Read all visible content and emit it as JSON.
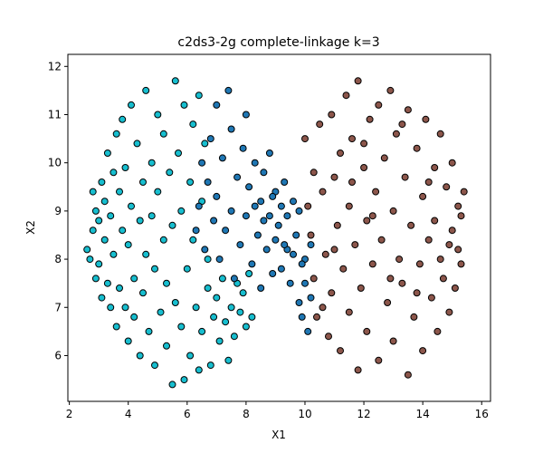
{
  "chart_data": {
    "type": "scatter",
    "title": "c2ds3-2g complete-linkage k=3",
    "xlabel": "X1",
    "ylabel": "X2",
    "xlim": [
      1.95,
      16.3
    ],
    "ylim": [
      5.05,
      12.25
    ],
    "xticks": [
      2,
      4,
      6,
      8,
      10,
      12,
      14,
      16
    ],
    "yticks": [
      6,
      7,
      8,
      9,
      10,
      11,
      12
    ],
    "grid": false,
    "legend": "none",
    "series": [
      {
        "color": "#17becf",
        "points": [
          [
            2.6,
            8.2
          ],
          [
            2.7,
            8.0
          ],
          [
            2.8,
            9.4
          ],
          [
            2.8,
            8.6
          ],
          [
            2.9,
            7.6
          ],
          [
            2.9,
            9.0
          ],
          [
            3.0,
            8.8
          ],
          [
            3.0,
            7.9
          ],
          [
            3.1,
            9.6
          ],
          [
            3.1,
            7.2
          ],
          [
            3.2,
            8.4
          ],
          [
            3.2,
            9.2
          ],
          [
            3.3,
            7.5
          ],
          [
            3.3,
            10.2
          ],
          [
            3.4,
            8.9
          ],
          [
            3.4,
            7.0
          ],
          [
            3.5,
            9.8
          ],
          [
            3.5,
            8.1
          ],
          [
            3.6,
            6.6
          ],
          [
            3.6,
            10.6
          ],
          [
            3.7,
            9.4
          ],
          [
            3.7,
            7.4
          ],
          [
            3.8,
            8.6
          ],
          [
            3.8,
            10.9
          ],
          [
            3.9,
            7.0
          ],
          [
            3.9,
            9.9
          ],
          [
            4.0,
            6.3
          ],
          [
            4.0,
            8.3
          ],
          [
            4.1,
            11.2
          ],
          [
            4.1,
            9.1
          ],
          [
            4.2,
            7.6
          ],
          [
            4.2,
            6.8
          ],
          [
            4.3,
            10.4
          ],
          [
            4.4,
            8.8
          ],
          [
            4.4,
            6.0
          ],
          [
            4.5,
            9.6
          ],
          [
            4.5,
            7.3
          ],
          [
            4.6,
            11.5
          ],
          [
            4.6,
            8.1
          ],
          [
            4.7,
            6.5
          ],
          [
            4.8,
            10.0
          ],
          [
            4.8,
            8.9
          ],
          [
            4.9,
            7.8
          ],
          [
            4.9,
            5.8
          ],
          [
            5.0,
            11.0
          ],
          [
            5.0,
            9.4
          ],
          [
            5.1,
            6.9
          ],
          [
            5.2,
            8.4
          ],
          [
            5.2,
            10.6
          ],
          [
            5.3,
            6.2
          ],
          [
            5.3,
            7.5
          ],
          [
            5.4,
            9.8
          ],
          [
            5.5,
            5.4
          ],
          [
            5.5,
            8.7
          ],
          [
            5.6,
            11.7
          ],
          [
            5.6,
            7.1
          ],
          [
            5.7,
            10.2
          ],
          [
            5.8,
            6.6
          ],
          [
            5.8,
            9.0
          ],
          [
            5.9,
            5.5
          ],
          [
            5.9,
            11.2
          ],
          [
            6.0,
            7.8
          ],
          [
            6.1,
            9.6
          ],
          [
            6.1,
            6.0
          ],
          [
            6.2,
            10.8
          ],
          [
            6.2,
            8.4
          ],
          [
            6.3,
            7.0
          ],
          [
            6.4,
            11.4
          ],
          [
            6.4,
            5.7
          ],
          [
            6.5,
            9.2
          ],
          [
            6.5,
            6.5
          ],
          [
            6.6,
            10.4
          ],
          [
            6.7,
            7.4
          ],
          [
            6.7,
            8.0
          ],
          [
            6.8,
            5.8
          ],
          [
            6.9,
            6.8
          ],
          [
            7.0,
            7.2
          ],
          [
            7.1,
            6.3
          ],
          [
            7.2,
            7.6
          ],
          [
            7.3,
            6.7
          ],
          [
            7.4,
            5.9
          ],
          [
            7.5,
            7.0
          ],
          [
            7.6,
            6.4
          ],
          [
            7.7,
            7.5
          ],
          [
            7.8,
            6.9
          ],
          [
            7.9,
            7.3
          ],
          [
            8.0,
            6.6
          ],
          [
            8.1,
            7.7
          ],
          [
            8.2,
            6.8
          ]
        ]
      },
      {
        "color": "#1f77b4",
        "points": [
          [
            6.3,
            8.6
          ],
          [
            6.4,
            9.1
          ],
          [
            6.5,
            10.0
          ],
          [
            6.6,
            8.2
          ],
          [
            6.7,
            9.6
          ],
          [
            6.8,
            10.5
          ],
          [
            6.9,
            8.8
          ],
          [
            7.0,
            11.2
          ],
          [
            7.0,
            9.3
          ],
          [
            7.1,
            8.0
          ],
          [
            7.2,
            10.1
          ],
          [
            7.3,
            8.6
          ],
          [
            7.4,
            11.5
          ],
          [
            7.5,
            9.0
          ],
          [
            7.5,
            10.7
          ],
          [
            7.6,
            7.6
          ],
          [
            7.7,
            9.7
          ],
          [
            7.8,
            8.3
          ],
          [
            7.9,
            10.3
          ],
          [
            8.0,
            11.0
          ],
          [
            8.0,
            8.9
          ],
          [
            8.1,
            9.5
          ],
          [
            8.2,
            7.9
          ],
          [
            8.3,
            10.0
          ],
          [
            8.4,
            8.5
          ],
          [
            8.5,
            9.2
          ],
          [
            8.5,
            7.4
          ],
          [
            8.6,
            9.8
          ],
          [
            8.7,
            8.2
          ],
          [
            8.8,
            8.9
          ],
          [
            8.8,
            10.2
          ],
          [
            8.9,
            7.7
          ],
          [
            9.0,
            9.4
          ],
          [
            9.0,
            8.4
          ],
          [
            9.1,
            8.7
          ],
          [
            9.2,
            9.1
          ],
          [
            9.2,
            7.8
          ],
          [
            9.3,
            9.6
          ],
          [
            9.4,
            8.2
          ],
          [
            9.4,
            8.9
          ],
          [
            9.5,
            7.5
          ],
          [
            9.6,
            9.2
          ],
          [
            9.7,
            8.5
          ],
          [
            9.8,
            7.1
          ],
          [
            9.8,
            9.0
          ],
          [
            9.9,
            6.8
          ],
          [
            10.0,
            8.0
          ],
          [
            10.0,
            7.5
          ],
          [
            10.1,
            6.5
          ],
          [
            10.2,
            8.3
          ],
          [
            10.2,
            7.2
          ],
          [
            9.9,
            7.9
          ],
          [
            9.6,
            8.1
          ],
          [
            9.3,
            8.3
          ],
          [
            8.9,
            9.3
          ],
          [
            8.6,
            8.8
          ],
          [
            8.3,
            9.1
          ]
        ]
      },
      {
        "color": "#8c564b",
        "points": [
          [
            10.0,
            10.5
          ],
          [
            10.1,
            9.1
          ],
          [
            10.2,
            8.5
          ],
          [
            10.3,
            9.8
          ],
          [
            10.3,
            7.6
          ],
          [
            10.4,
            6.8
          ],
          [
            10.5,
            10.8
          ],
          [
            10.6,
            9.4
          ],
          [
            10.7,
            8.1
          ],
          [
            10.8,
            6.4
          ],
          [
            10.9,
            11.0
          ],
          [
            10.9,
            7.3
          ],
          [
            11.0,
            9.7
          ],
          [
            11.1,
            8.7
          ],
          [
            11.2,
            10.2
          ],
          [
            11.2,
            6.1
          ],
          [
            11.3,
            7.8
          ],
          [
            11.4,
            11.4
          ],
          [
            11.5,
            9.1
          ],
          [
            11.5,
            6.9
          ],
          [
            11.6,
            10.5
          ],
          [
            11.7,
            8.3
          ],
          [
            11.8,
            5.7
          ],
          [
            11.8,
            11.7
          ],
          [
            11.9,
            7.4
          ],
          [
            12.0,
            9.9
          ],
          [
            12.1,
            8.8
          ],
          [
            12.1,
            6.5
          ],
          [
            12.2,
            10.9
          ],
          [
            12.3,
            7.9
          ],
          [
            12.4,
            9.4
          ],
          [
            12.5,
            11.2
          ],
          [
            12.5,
            5.9
          ],
          [
            12.6,
            8.4
          ],
          [
            12.7,
            10.1
          ],
          [
            12.8,
            7.1
          ],
          [
            12.9,
            11.5
          ],
          [
            13.0,
            9.0
          ],
          [
            13.0,
            6.3
          ],
          [
            13.1,
            10.6
          ],
          [
            13.2,
            8.0
          ],
          [
            13.3,
            7.5
          ],
          [
            13.4,
            9.7
          ],
          [
            13.5,
            5.6
          ],
          [
            13.5,
            11.1
          ],
          [
            13.6,
            8.7
          ],
          [
            13.7,
            6.8
          ],
          [
            13.8,
            10.3
          ],
          [
            13.9,
            7.9
          ],
          [
            14.0,
            9.3
          ],
          [
            14.0,
            6.1
          ],
          [
            14.1,
            10.9
          ],
          [
            14.2,
            8.4
          ],
          [
            14.3,
            7.2
          ],
          [
            14.4,
            9.9
          ],
          [
            14.5,
            6.5
          ],
          [
            14.6,
            10.6
          ],
          [
            14.6,
            8.0
          ],
          [
            14.7,
            7.6
          ],
          [
            14.8,
            9.5
          ],
          [
            14.9,
            6.9
          ],
          [
            15.0,
            10.0
          ],
          [
            15.0,
            8.6
          ],
          [
            15.1,
            7.4
          ],
          [
            15.2,
            9.1
          ],
          [
            15.2,
            8.2
          ],
          [
            15.3,
            8.9
          ],
          [
            15.3,
            7.9
          ],
          [
            15.4,
            9.4
          ],
          [
            14.9,
            8.3
          ],
          [
            14.4,
            8.8
          ],
          [
            13.8,
            7.3
          ],
          [
            12.9,
            7.6
          ],
          [
            12.3,
            8.9
          ],
          [
            11.6,
            9.6
          ],
          [
            11.0,
            8.2
          ],
          [
            10.6,
            7.0
          ],
          [
            13.3,
            10.8
          ],
          [
            14.2,
            9.6
          ],
          [
            12.0,
            10.4
          ]
        ]
      }
    ]
  }
}
